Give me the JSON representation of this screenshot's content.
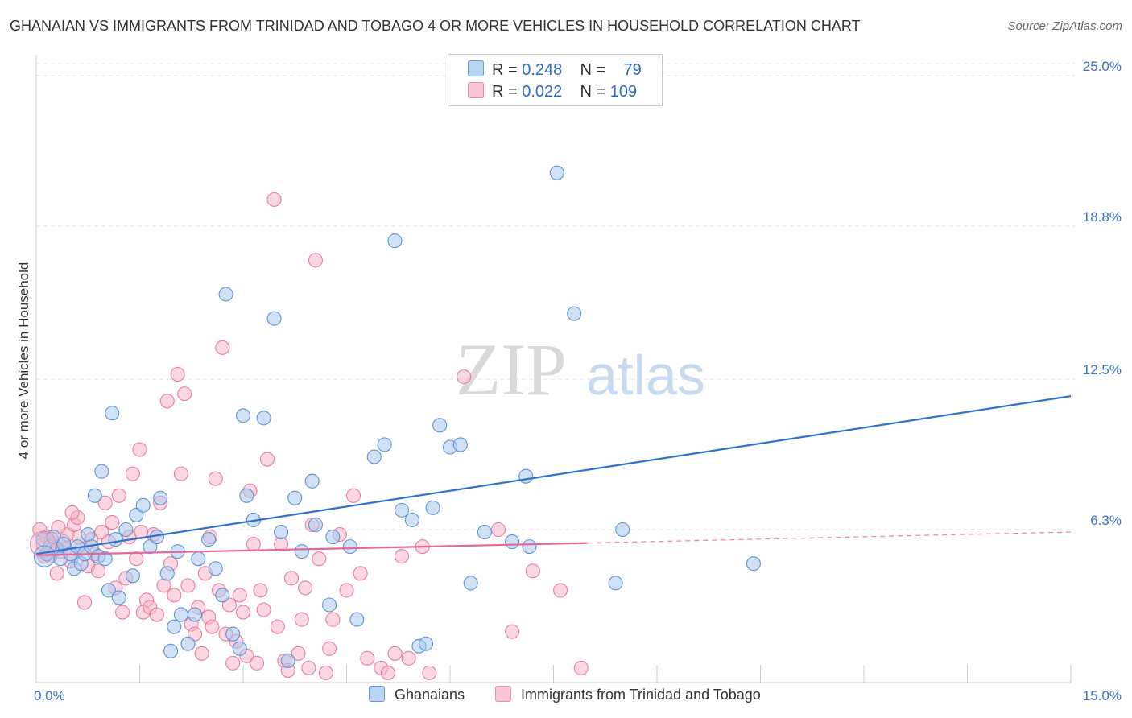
{
  "title": "GHANAIAN VS IMMIGRANTS FROM TRINIDAD AND TOBAGO 4 OR MORE VEHICLES IN HOUSEHOLD CORRELATION CHART",
  "source": "Source: ZipAtlas.com",
  "watermark": {
    "zip": "ZIP",
    "atlas": "atlas"
  },
  "legend": {
    "rows": [
      {
        "r_label": "R =",
        "r_value": "0.248",
        "n_label": "N =",
        "n_value": "79"
      },
      {
        "r_label": "R =",
        "r_value": "0.022",
        "n_label": "N =",
        "n_value": "109"
      }
    ]
  },
  "colors": {
    "blue_fill": "#a9c9ef",
    "blue_stroke": "#5e95d6",
    "blue_line": "#2e72cc",
    "pink_fill": "#f5b7c9",
    "pink_stroke": "#e87ea1",
    "pink_line": "#e4679a",
    "axis_text": "#3a74c4",
    "grid": "#e0e0e0"
  },
  "chart_data": {
    "type": "scatter",
    "title": "GHANAIAN VS IMMIGRANTS FROM TRINIDAD AND TOBAGO 4 OR MORE VEHICLES IN HOUSEHOLD CORRELATION CHART",
    "xlabel": "",
    "ylabel": "4 or more Vehicles in Household",
    "xlim": [
      0,
      15
    ],
    "ylim": [
      0,
      25.5
    ],
    "x_tick_labels": [
      {
        "value": 0,
        "label": "0.0%"
      },
      {
        "value": 15,
        "label": "15.0%"
      }
    ],
    "y_tick_labels": [
      {
        "value": 6.3,
        "label": "6.3%"
      },
      {
        "value": 12.5,
        "label": "12.5%"
      },
      {
        "value": 18.8,
        "label": "18.8%"
      },
      {
        "value": 25.0,
        "label": "25.0%"
      }
    ],
    "grid": true,
    "legend_position": "top-center",
    "series": [
      {
        "name": "Ghanaians",
        "color": "#5e95d6",
        "trend": {
          "x": [
            0,
            15
          ],
          "y": [
            5.3,
            11.8
          ],
          "style": "solid"
        },
        "points": [
          [
            0.1,
            5.9
          ],
          [
            0.15,
            5.3
          ],
          [
            0.2,
            5.6
          ],
          [
            0.25,
            6.0
          ],
          [
            0.3,
            5.5
          ],
          [
            0.35,
            5.1
          ],
          [
            0.4,
            5.7
          ],
          [
            0.5,
            5.3
          ],
          [
            0.55,
            4.7
          ],
          [
            0.6,
            5.6
          ],
          [
            0.65,
            4.9
          ],
          [
            0.7,
            5.3
          ],
          [
            0.75,
            6.1
          ],
          [
            0.8,
            5.6
          ],
          [
            0.85,
            7.7
          ],
          [
            0.9,
            5.2
          ],
          [
            0.95,
            8.7
          ],
          [
            1.0,
            5.1
          ],
          [
            1.05,
            3.8
          ],
          [
            1.1,
            11.1
          ],
          [
            1.15,
            5.9
          ],
          [
            1.2,
            3.5
          ],
          [
            1.3,
            6.3
          ],
          [
            1.4,
            4.4
          ],
          [
            1.45,
            6.9
          ],
          [
            1.55,
            7.3
          ],
          [
            1.65,
            5.6
          ],
          [
            1.75,
            6.0
          ],
          [
            1.8,
            7.6
          ],
          [
            1.9,
            4.5
          ],
          [
            1.95,
            1.3
          ],
          [
            2.0,
            2.3
          ],
          [
            2.05,
            5.4
          ],
          [
            2.1,
            2.8
          ],
          [
            2.2,
            1.6
          ],
          [
            2.3,
            2.8
          ],
          [
            2.35,
            5.1
          ],
          [
            2.5,
            5.9
          ],
          [
            2.6,
            4.7
          ],
          [
            2.7,
            3.6
          ],
          [
            2.75,
            16.0
          ],
          [
            2.85,
            2.0
          ],
          [
            2.95,
            1.4
          ],
          [
            3.0,
            11.0
          ],
          [
            3.05,
            7.7
          ],
          [
            3.15,
            6.7
          ],
          [
            3.3,
            10.9
          ],
          [
            3.45,
            15.0
          ],
          [
            3.55,
            6.2
          ],
          [
            3.65,
            0.9
          ],
          [
            3.75,
            7.6
          ],
          [
            3.85,
            5.4
          ],
          [
            4.0,
            8.3
          ],
          [
            4.05,
            6.5
          ],
          [
            4.25,
            3.2
          ],
          [
            4.3,
            6.0
          ],
          [
            4.55,
            5.6
          ],
          [
            4.65,
            2.6
          ],
          [
            4.9,
            9.3
          ],
          [
            5.05,
            9.8
          ],
          [
            5.2,
            18.2
          ],
          [
            5.3,
            7.1
          ],
          [
            5.45,
            6.7
          ],
          [
            5.55,
            1.5
          ],
          [
            5.65,
            1.6
          ],
          [
            5.75,
            7.2
          ],
          [
            5.85,
            10.6
          ],
          [
            6.0,
            9.7
          ],
          [
            6.15,
            9.8
          ],
          [
            6.3,
            4.1
          ],
          [
            6.9,
            5.8
          ],
          [
            7.1,
            8.5
          ],
          [
            7.15,
            5.6
          ],
          [
            7.55,
            21.0
          ],
          [
            7.8,
            15.2
          ],
          [
            8.4,
            4.1
          ],
          [
            10.4,
            4.9
          ],
          [
            8.5,
            6.3
          ],
          [
            6.5,
            6.2
          ]
        ]
      },
      {
        "name": "Immigrants from Trinidad and Tobago",
        "color": "#e87ea1",
        "trend": {
          "x": [
            0,
            8.0
          ],
          "y": [
            5.25,
            5.75
          ],
          "style": "solid",
          "dashed_to": [
            15,
            6.2
          ]
        },
        "points": [
          [
            0.05,
            6.3
          ],
          [
            0.1,
            5.7
          ],
          [
            0.15,
            6.0
          ],
          [
            0.2,
            5.2
          ],
          [
            0.25,
            5.6
          ],
          [
            0.3,
            4.5
          ],
          [
            0.35,
            5.4
          ],
          [
            0.4,
            5.8
          ],
          [
            0.45,
            6.1
          ],
          [
            0.5,
            5.0
          ],
          [
            0.55,
            6.5
          ],
          [
            0.6,
            6.8
          ],
          [
            0.65,
            5.5
          ],
          [
            0.7,
            3.3
          ],
          [
            0.75,
            4.8
          ],
          [
            0.8,
            5.9
          ],
          [
            0.85,
            5.3
          ],
          [
            0.9,
            4.6
          ],
          [
            0.95,
            6.2
          ],
          [
            1.0,
            7.4
          ],
          [
            1.05,
            5.8
          ],
          [
            1.1,
            6.6
          ],
          [
            1.15,
            3.9
          ],
          [
            1.2,
            7.7
          ],
          [
            1.25,
            2.9
          ],
          [
            1.3,
            4.3
          ],
          [
            1.35,
            6.0
          ],
          [
            1.4,
            8.6
          ],
          [
            1.45,
            5.1
          ],
          [
            1.5,
            9.6
          ],
          [
            1.55,
            2.9
          ],
          [
            1.6,
            3.4
          ],
          [
            1.65,
            3.1
          ],
          [
            1.7,
            6.1
          ],
          [
            1.75,
            2.8
          ],
          [
            1.8,
            7.4
          ],
          [
            1.85,
            4.0
          ],
          [
            1.9,
            11.6
          ],
          [
            1.95,
            4.9
          ],
          [
            2.0,
            3.6
          ],
          [
            2.05,
            12.7
          ],
          [
            2.1,
            8.6
          ],
          [
            2.15,
            11.9
          ],
          [
            2.2,
            4.0
          ],
          [
            2.25,
            2.4
          ],
          [
            2.3,
            2.0
          ],
          [
            2.35,
            3.1
          ],
          [
            2.4,
            1.2
          ],
          [
            2.45,
            4.5
          ],
          [
            2.5,
            2.7
          ],
          [
            2.55,
            2.3
          ],
          [
            2.6,
            8.4
          ],
          [
            2.65,
            3.8
          ],
          [
            2.7,
            13.8
          ],
          [
            2.75,
            2.0
          ],
          [
            2.8,
            3.2
          ],
          [
            2.85,
            0.8
          ],
          [
            2.9,
            1.7
          ],
          [
            2.95,
            3.6
          ],
          [
            3.0,
            2.9
          ],
          [
            3.05,
            1.1
          ],
          [
            3.1,
            7.9
          ],
          [
            3.15,
            5.7
          ],
          [
            3.2,
            0.8
          ],
          [
            3.25,
            3.8
          ],
          [
            3.3,
            3.0
          ],
          [
            3.35,
            9.2
          ],
          [
            3.45,
            19.9
          ],
          [
            3.5,
            2.3
          ],
          [
            3.55,
            5.7
          ],
          [
            3.6,
            0.9
          ],
          [
            3.65,
            0.5
          ],
          [
            3.7,
            4.3
          ],
          [
            3.8,
            1.2
          ],
          [
            3.85,
            2.6
          ],
          [
            3.9,
            3.9
          ],
          [
            3.95,
            0.6
          ],
          [
            4.0,
            6.5
          ],
          [
            4.05,
            17.4
          ],
          [
            4.1,
            5.1
          ],
          [
            4.2,
            0.4
          ],
          [
            4.25,
            1.4
          ],
          [
            4.3,
            2.6
          ],
          [
            4.4,
            6.1
          ],
          [
            4.5,
            3.8
          ],
          [
            4.6,
            7.7
          ],
          [
            4.7,
            4.5
          ],
          [
            4.8,
            1.0
          ],
          [
            5.0,
            0.6
          ],
          [
            5.1,
            0.4
          ],
          [
            5.2,
            1.2
          ],
          [
            5.3,
            5.2
          ],
          [
            5.4,
            1.0
          ],
          [
            5.6,
            5.6
          ],
          [
            5.7,
            0.4
          ],
          [
            6.2,
            12.6
          ],
          [
            6.7,
            6.3
          ],
          [
            6.9,
            2.1
          ],
          [
            7.2,
            4.6
          ],
          [
            7.6,
            3.8
          ],
          [
            7.9,
            0.6
          ],
          [
            0.12,
            5.2
          ],
          [
            0.22,
            5.9
          ],
          [
            0.32,
            6.4
          ],
          [
            0.42,
            5.5
          ],
          [
            0.52,
            7.0
          ],
          [
            0.62,
            6.0
          ],
          [
            1.52,
            6.2
          ],
          [
            2.52,
            6.0
          ]
        ]
      }
    ]
  },
  "bottom_legend": [
    {
      "label": "Ghanaians"
    },
    {
      "label": "Immigrants from Trinidad and Tobago"
    }
  ]
}
